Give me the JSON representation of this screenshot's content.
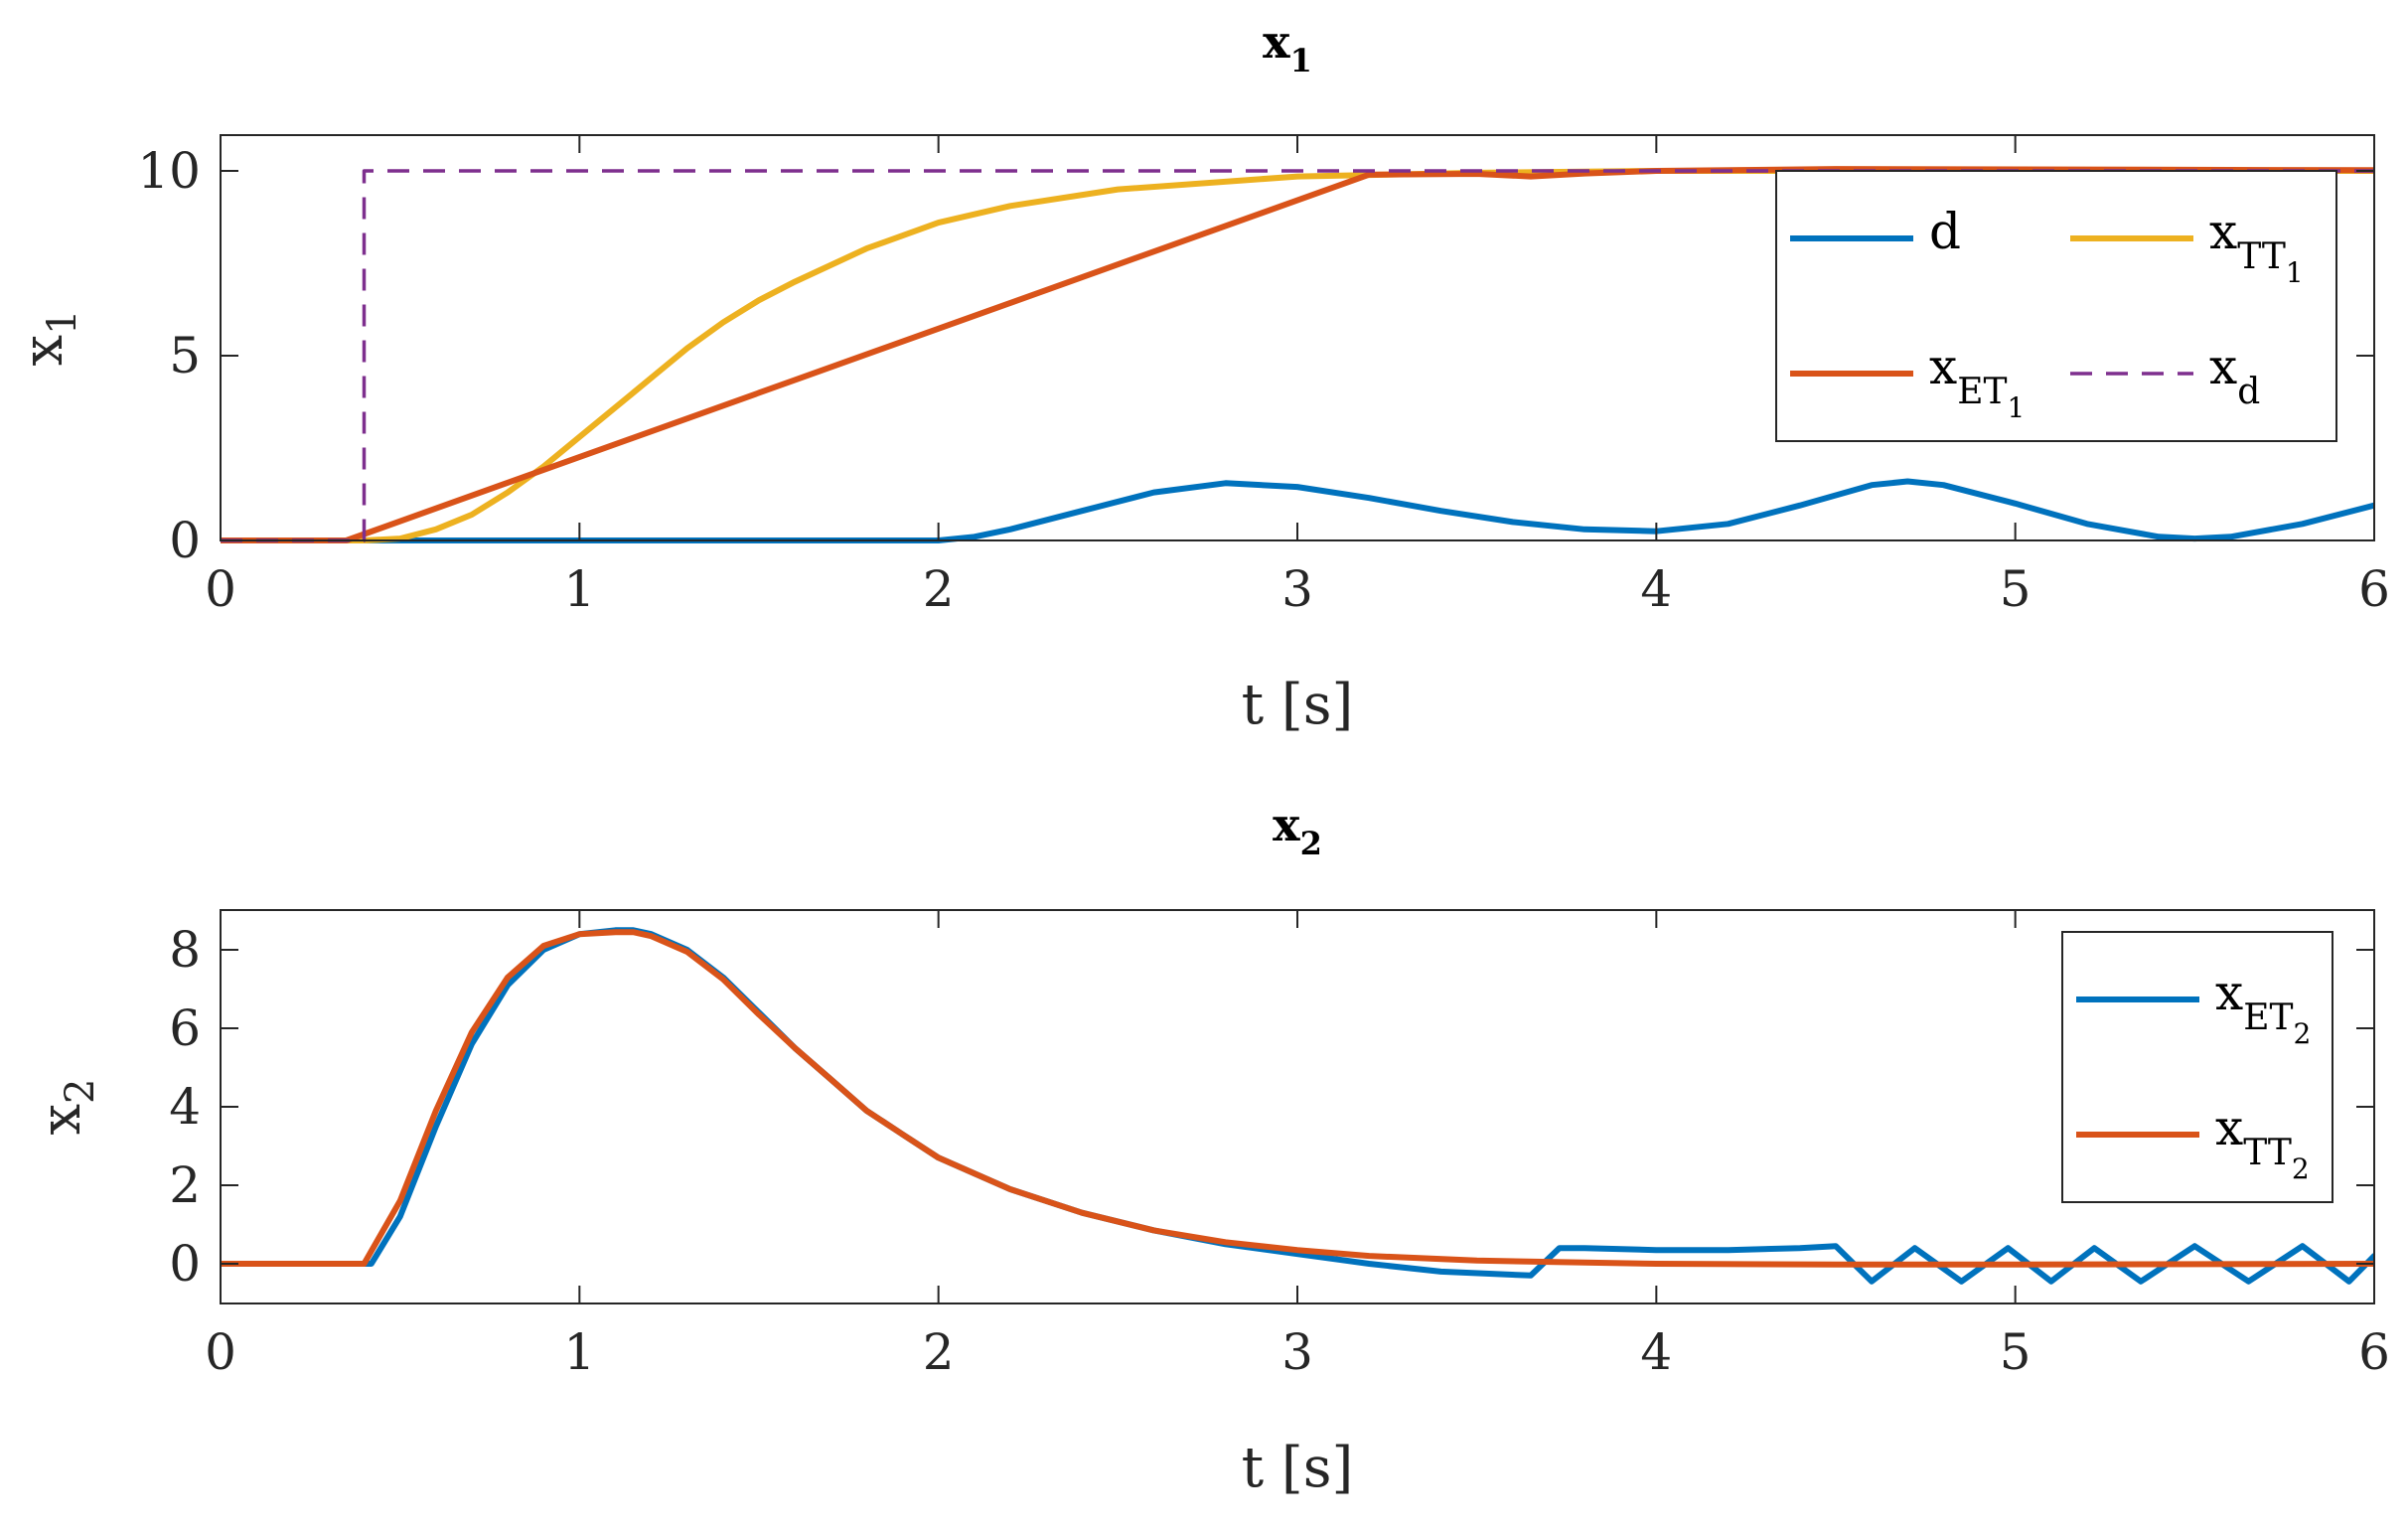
{
  "chart_data": [
    {
      "type": "line",
      "title": "x",
      "title_sub": "1",
      "xlabel": "t [s]",
      "ylabel": "x",
      "ylabel_sub": "1",
      "xlim": [
        0,
        6
      ],
      "ylim": [
        0,
        10
      ],
      "xticks": [
        "0",
        "1",
        "2",
        "3",
        "4",
        "5",
        "6"
      ],
      "yticks": [
        "0",
        "5",
        "10"
      ],
      "grid": false,
      "legend_placement": "top-right",
      "series": [
        {
          "name": "d",
          "name_sub": "",
          "color": "#0072BD",
          "style": "solid",
          "x": [
            0,
            0.5,
            1,
            1.5,
            2,
            2.1,
            2.2,
            2.4,
            2.6,
            2.8,
            3.0,
            3.2,
            3.4,
            3.6,
            3.8,
            4.0,
            4.2,
            4.4,
            4.6,
            4.7,
            4.8,
            5.0,
            5.2,
            5.4,
            5.5,
            5.6,
            5.8,
            6.0
          ],
          "y": [
            0,
            0,
            0,
            0,
            0,
            0.1,
            0.3,
            0.8,
            1.3,
            1.55,
            1.45,
            1.15,
            0.8,
            0.5,
            0.3,
            0.25,
            0.45,
            0.95,
            1.5,
            1.6,
            1.5,
            1.0,
            0.45,
            0.1,
            0.05,
            0.1,
            0.45,
            0.95
          ]
        },
        {
          "name": "x",
          "name_sub": "TT1",
          "color": "#EDB120",
          "style": "solid",
          "x": [
            0,
            0.4,
            0.5,
            0.6,
            0.7,
            0.8,
            0.9,
            1.0,
            1.1,
            1.2,
            1.3,
            1.4,
            1.5,
            1.6,
            1.8,
            2.0,
            2.2,
            2.5,
            3.0,
            3.5,
            4.0,
            5.0,
            6.0
          ],
          "y": [
            0,
            0,
            0.05,
            0.3,
            0.7,
            1.3,
            2.0,
            2.8,
            3.6,
            4.4,
            5.2,
            5.9,
            6.5,
            7.0,
            7.9,
            8.6,
            9.05,
            9.5,
            9.85,
            9.95,
            10.0,
            10.0,
            10.0
          ]
        },
        {
          "name": "x",
          "name_sub": "ET1",
          "color": "#D95319",
          "style": "solid",
          "x": [
            0,
            0.35,
            3.2,
            3.5,
            3.65,
            3.8,
            4.0,
            4.5,
            6.0
          ],
          "y": [
            0,
            0,
            9.9,
            9.92,
            9.85,
            9.93,
            10.0,
            10.05,
            10.02
          ]
        },
        {
          "name": "x",
          "name_sub": "d",
          "color": "#7E2F8E",
          "style": "dashed",
          "x": [
            0,
            0.4,
            0.4,
            6.0
          ],
          "y": [
            0,
            0,
            10,
            10
          ]
        }
      ]
    },
    {
      "type": "line",
      "title": "x",
      "title_sub": "2",
      "xlabel": "t [s]",
      "ylabel": "x",
      "ylabel_sub": "2",
      "xlim": [
        0,
        6
      ],
      "ylim": [
        -1,
        9
      ],
      "xticks": [
        "0",
        "1",
        "2",
        "3",
        "4",
        "5",
        "6"
      ],
      "yticks": [
        "0",
        "2",
        "4",
        "6",
        "8"
      ],
      "grid": false,
      "legend_placement": "top-right",
      "series": [
        {
          "name": "x",
          "name_sub": "ET2",
          "color": "#0072BD",
          "style": "solid",
          "x": [
            0,
            0.42,
            0.5,
            0.6,
            0.7,
            0.8,
            0.9,
            1.0,
            1.1,
            1.15,
            1.2,
            1.3,
            1.4,
            1.5,
            1.6,
            1.7,
            1.8,
            1.9,
            2.0,
            2.2,
            2.4,
            2.6,
            2.8,
            3.0,
            3.2,
            3.4,
            3.65,
            3.73,
            3.8,
            4.0,
            4.2,
            4.4,
            4.5,
            4.6,
            4.72,
            4.85,
            4.98,
            5.1,
            5.22,
            5.35,
            5.5,
            5.65,
            5.8,
            5.93,
            6.0
          ],
          "y": [
            0,
            0,
            1.2,
            3.5,
            5.6,
            7.1,
            8.0,
            8.4,
            8.5,
            8.5,
            8.4,
            8.0,
            7.3,
            6.4,
            5.5,
            4.7,
            3.9,
            3.3,
            2.7,
            1.9,
            1.3,
            0.85,
            0.5,
            0.25,
            0.0,
            -0.2,
            -0.3,
            0.4,
            0.4,
            0.35,
            0.35,
            0.4,
            0.45,
            -0.45,
            0.4,
            -0.45,
            0.4,
            -0.45,
            0.4,
            -0.45,
            0.45,
            -0.45,
            0.45,
            -0.45,
            0.2
          ]
        },
        {
          "name": "x",
          "name_sub": "TT2",
          "color": "#D95319",
          "style": "solid",
          "x": [
            0,
            0.4,
            0.5,
            0.6,
            0.7,
            0.8,
            0.9,
            1.0,
            1.1,
            1.15,
            1.2,
            1.3,
            1.4,
            1.5,
            1.6,
            1.7,
            1.8,
            1.9,
            2.0,
            2.2,
            2.4,
            2.6,
            2.8,
            3.0,
            3.2,
            3.5,
            4.0,
            4.5,
            5.0,
            6.0
          ],
          "y": [
            0,
            0,
            1.6,
            3.9,
            5.9,
            7.3,
            8.1,
            8.4,
            8.45,
            8.45,
            8.35,
            7.95,
            7.25,
            6.35,
            5.5,
            4.7,
            3.9,
            3.3,
            2.7,
            1.9,
            1.3,
            0.85,
            0.55,
            0.35,
            0.2,
            0.08,
            0.0,
            -0.02,
            -0.02,
            0.0
          ]
        }
      ]
    }
  ]
}
